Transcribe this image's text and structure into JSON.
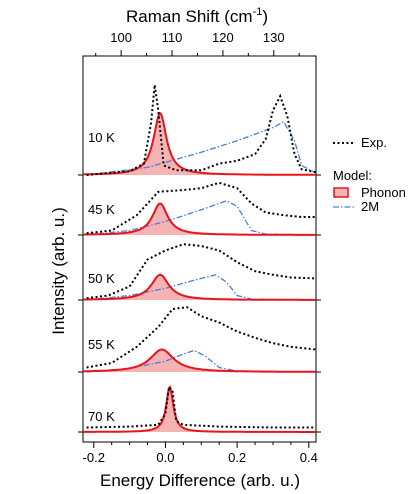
{
  "chart_data": {
    "type": "line",
    "x_axis": {
      "label": "Energy Difference (arb. u.)",
      "range": [
        -0.23,
        0.42
      ],
      "ticks": [
        -0.2,
        0.0,
        0.2,
        0.4
      ],
      "tick_labels": [
        "-0.2",
        "0.0",
        "0.2",
        "0.4"
      ]
    },
    "top_axis": {
      "label": "Raman Shift (cm",
      "label_superscript": "-1",
      "label_suffix": ")",
      "range": [
        92.5,
        138.3
      ],
      "ticks": [
        100,
        110,
        120,
        130
      ],
      "tick_labels": [
        "100",
        "110",
        "120",
        "130"
      ]
    },
    "y_axis": {
      "label": "Intensity (arb. u.)",
      "tick_labels_shown": false
    },
    "grid": false,
    "legend": {
      "placement": "right",
      "items": [
        {
          "label": "Exp.",
          "style": "black dotted line"
        },
        {
          "heading": "Model:"
        },
        {
          "label": "Phonon",
          "style": "red line with pink fill"
        },
        {
          "label": "2M",
          "style": "blue dash-dot line"
        }
      ]
    },
    "colors": {
      "experiment": "#000000",
      "phonon_line": "#e8141b",
      "phonon_fill": "#f6b3b3",
      "two_magnon": "#4a7fdc"
    },
    "panels": [
      {
        "temperature": "10 K",
        "baseline": 0.0,
        "exp": [
          [
            -0.22,
            0.0
          ],
          [
            -0.1,
            0.04
          ],
          [
            -0.06,
            0.12
          ],
          [
            -0.04,
            0.55
          ],
          [
            -0.03,
            0.95
          ],
          [
            -0.02,
            0.68
          ],
          [
            -0.005,
            0.1
          ],
          [
            0.03,
            0.05
          ],
          [
            0.1,
            0.05
          ],
          [
            0.15,
            0.12
          ],
          [
            0.2,
            0.15
          ],
          [
            0.25,
            0.22
          ],
          [
            0.28,
            0.38
          ],
          [
            0.3,
            0.68
          ],
          [
            0.32,
            0.83
          ],
          [
            0.34,
            0.62
          ],
          [
            0.36,
            0.22
          ],
          [
            0.38,
            0.06
          ],
          [
            0.42,
            0.03
          ]
        ],
        "phonon": {
          "center": -0.015,
          "amplitude": 0.65,
          "width": 0.022
        },
        "two_magnon": [
          [
            -0.22,
            0.0
          ],
          [
            -0.05,
            0.08
          ],
          [
            0.1,
            0.24
          ],
          [
            0.2,
            0.36
          ],
          [
            0.3,
            0.5
          ],
          [
            0.33,
            0.56
          ],
          [
            0.36,
            0.36
          ],
          [
            0.38,
            0.1
          ],
          [
            0.42,
            0.02
          ]
        ]
      },
      {
        "temperature": "45 K",
        "baseline": 0.0,
        "exp": [
          [
            -0.22,
            0.02
          ],
          [
            -0.15,
            0.05
          ],
          [
            -0.08,
            0.22
          ],
          [
            -0.02,
            0.48
          ],
          [
            0.05,
            0.5
          ],
          [
            0.1,
            0.52
          ],
          [
            0.15,
            0.58
          ],
          [
            0.2,
            0.52
          ],
          [
            0.24,
            0.35
          ],
          [
            0.28,
            0.25
          ],
          [
            0.33,
            0.22
          ],
          [
            0.38,
            0.2
          ],
          [
            0.42,
            0.2
          ]
        ],
        "phonon": {
          "center": -0.015,
          "amplitude": 0.35,
          "width": 0.026
        },
        "two_magnon": [
          [
            -0.22,
            0.0
          ],
          [
            -0.1,
            0.05
          ],
          [
            0.0,
            0.15
          ],
          [
            0.1,
            0.28
          ],
          [
            0.17,
            0.38
          ],
          [
            0.2,
            0.32
          ],
          [
            0.24,
            0.05
          ],
          [
            0.28,
            0.01
          ],
          [
            0.42,
            0.0
          ]
        ]
      },
      {
        "temperature": "50 K",
        "baseline": 0.0,
        "exp": [
          [
            -0.22,
            0.02
          ],
          [
            -0.16,
            0.05
          ],
          [
            -0.1,
            0.15
          ],
          [
            -0.05,
            0.45
          ],
          [
            0.0,
            0.55
          ],
          [
            0.05,
            0.62
          ],
          [
            0.1,
            0.6
          ],
          [
            0.15,
            0.55
          ],
          [
            0.2,
            0.42
          ],
          [
            0.25,
            0.32
          ],
          [
            0.3,
            0.28
          ],
          [
            0.35,
            0.25
          ],
          [
            0.42,
            0.24
          ]
        ],
        "phonon": {
          "center": -0.015,
          "amplitude": 0.28,
          "width": 0.03
        },
        "two_magnon": [
          [
            -0.22,
            0.0
          ],
          [
            -0.1,
            0.05
          ],
          [
            0.0,
            0.13
          ],
          [
            0.08,
            0.22
          ],
          [
            0.14,
            0.28
          ],
          [
            0.17,
            0.2
          ],
          [
            0.2,
            0.05
          ],
          [
            0.24,
            0.01
          ],
          [
            0.42,
            0.0
          ]
        ]
      },
      {
        "temperature": "55 K",
        "baseline": 0.0,
        "exp": [
          [
            -0.22,
            0.05
          ],
          [
            -0.15,
            0.1
          ],
          [
            -0.08,
            0.28
          ],
          [
            -0.02,
            0.5
          ],
          [
            0.02,
            0.7
          ],
          [
            0.06,
            0.72
          ],
          [
            0.1,
            0.62
          ],
          [
            0.15,
            0.55
          ],
          [
            0.2,
            0.45
          ],
          [
            0.25,
            0.38
          ],
          [
            0.3,
            0.32
          ],
          [
            0.35,
            0.28
          ],
          [
            0.42,
            0.25
          ]
        ],
        "phonon": {
          "center": -0.01,
          "amplitude": 0.25,
          "width": 0.04
        },
        "two_magnon": [
          [
            -0.22,
            0.0
          ],
          [
            -0.1,
            0.04
          ],
          [
            0.0,
            0.12
          ],
          [
            0.05,
            0.2
          ],
          [
            0.08,
            0.24
          ],
          [
            0.11,
            0.18
          ],
          [
            0.15,
            0.05
          ],
          [
            0.2,
            0.01
          ],
          [
            0.42,
            0.0
          ]
        ]
      },
      {
        "temperature": "70 K",
        "baseline": 0.0,
        "exp": [
          [
            -0.22,
            0.05
          ],
          [
            -0.1,
            0.06
          ],
          [
            -0.02,
            0.08
          ],
          [
            0.0,
            0.2
          ],
          [
            0.01,
            0.5
          ],
          [
            0.02,
            0.45
          ],
          [
            0.03,
            0.12
          ],
          [
            0.05,
            0.08
          ],
          [
            0.15,
            0.06
          ],
          [
            0.3,
            0.05
          ],
          [
            0.42,
            0.05
          ]
        ],
        "phonon": {
          "center": 0.012,
          "amplitude": 0.5,
          "width": 0.012
        },
        "two_magnon": []
      }
    ]
  }
}
